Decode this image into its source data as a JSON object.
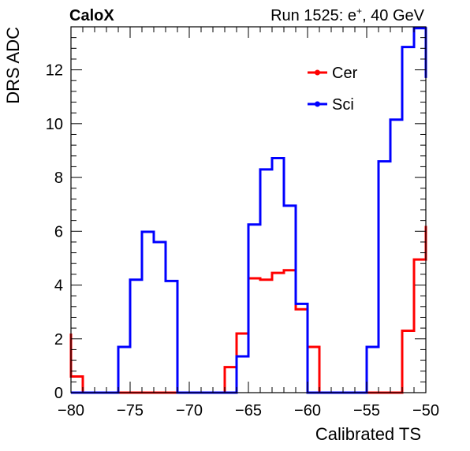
{
  "header": {
    "left_label": "CaloX",
    "right_label_prefix": "Run 1525: e",
    "right_label_sup": "+",
    "right_label_suffix": ", 40 GeV"
  },
  "chart_data": {
    "type": "line",
    "style": "step-histogram",
    "title": "",
    "xlabel": "Calibrated TS",
    "ylabel": "DRS ADC",
    "xlim": [
      -80,
      -50
    ],
    "ylim": [
      0,
      13.6
    ],
    "grid": false,
    "legend_position": "top-right",
    "x_tick_labels": [
      "−80",
      "−75",
      "−70",
      "−65",
      "−60",
      "−55",
      "−50"
    ],
    "x_ticks": [
      -80,
      -75,
      -70,
      -65,
      -60,
      -55,
      -50
    ],
    "y_tick_labels": [
      "0",
      "2",
      "4",
      "6",
      "8",
      "10",
      "12"
    ],
    "y_ticks": [
      0,
      2,
      4,
      6,
      8,
      10,
      12
    ],
    "series": [
      {
        "name": "Cer",
        "color": "#ff0000",
        "bin_edges": [
          -80,
          -79,
          -78,
          -77,
          -76,
          -75,
          -74,
          -73,
          -72,
          -71,
          -70,
          -69,
          -68,
          -67,
          -66,
          -65,
          -64,
          -63,
          -62,
          -61,
          -60,
          -59,
          -58,
          -57,
          -56,
          -55,
          -54,
          -53,
          -52,
          -51,
          -50
        ],
        "values": [
          0.6,
          0,
          0,
          0,
          0,
          0,
          0,
          0,
          0,
          0,
          0,
          0,
          0,
          0.95,
          2.2,
          4.25,
          4.2,
          4.45,
          4.55,
          3.1,
          1.7,
          0,
          0,
          0,
          0,
          0,
          0,
          0,
          2.3,
          4.95
        ],
        "left_edge_value": 2.2,
        "right_edge_value": 6.2
      },
      {
        "name": "Sci",
        "color": "#0000ff",
        "bin_edges": [
          -80,
          -79,
          -78,
          -77,
          -76,
          -75,
          -74,
          -73,
          -72,
          -71,
          -70,
          -69,
          -68,
          -67,
          -66,
          -65,
          -64,
          -63,
          -62,
          -61,
          -60,
          -59,
          -58,
          -57,
          -56,
          -55,
          -54,
          -53,
          -52,
          -51,
          -50
        ],
        "values": [
          0,
          0,
          0,
          0,
          1.7,
          4.2,
          5.98,
          5.6,
          4.15,
          0,
          0,
          0,
          0,
          0,
          1.35,
          6.25,
          8.3,
          8.72,
          6.95,
          3.3,
          0,
          0,
          0,
          0,
          0,
          1.7,
          8.6,
          10.15,
          12.85,
          13.55
        ],
        "left_edge_value": 0,
        "right_edge_value": 11.7
      }
    ]
  }
}
